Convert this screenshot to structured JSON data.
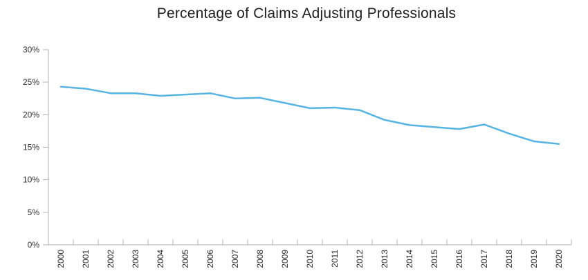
{
  "title": "Percentage of Claims Adjusting Professionals",
  "colors": {
    "line": "#56b4e2",
    "axis": "#b3b3b3",
    "tick_label": "#2e2e2e",
    "title": "#1f1f1f",
    "background": "#ffffff"
  },
  "chart_data": {
    "type": "line",
    "title": "Percentage of Claims Adjusting Professionals",
    "categories": [
      "2000",
      "2001",
      "2002",
      "2003",
      "2004",
      "2005",
      "2006",
      "2007",
      "2008",
      "2009",
      "2010",
      "2011",
      "2012",
      "2013",
      "2014",
      "2015",
      "2016",
      "2017",
      "2018",
      "2019",
      "2020"
    ],
    "values": [
      24.3,
      24.0,
      23.3,
      23.3,
      22.9,
      23.1,
      23.3,
      22.5,
      22.6,
      21.8,
      21.0,
      21.1,
      20.7,
      19.2,
      18.4,
      18.1,
      17.8,
      18.5,
      17.1,
      15.9,
      15.5
    ],
    "xlabel": "",
    "ylabel": "",
    "y_tick_labels": [
      "0%",
      "5%",
      "10%",
      "15%",
      "20%",
      "25%",
      "30%"
    ],
    "y_tick_values": [
      0,
      5,
      10,
      15,
      20,
      25,
      30
    ],
    "ylim": [
      0,
      30
    ],
    "grid": false,
    "legend_position": "none",
    "line_color": "#56b4e2",
    "markers": false
  }
}
